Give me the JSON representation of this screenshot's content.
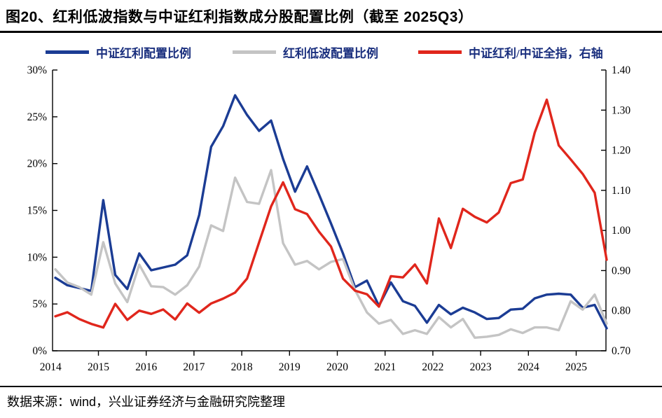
{
  "page": {
    "title": "图20、红利低波指数与中证红利指数成分股配置比例（截至 2025Q3）",
    "source": "数据来源：wind，兴业证券经济与金融研究院整理"
  },
  "colors": {
    "blue": "#1B3C94",
    "gray": "#C4C4C4",
    "red": "#E0261C",
    "axis": "#000000",
    "legend_text": "#1A2F7E"
  },
  "chart_data": {
    "type": "line",
    "title": "红利低波指数与中证红利指数成分股配置比例（截至 2025Q3）",
    "grid": false,
    "legend_position": "top",
    "x_axis": {
      "start": "2014Q1",
      "end": "2025Q3",
      "frequency": "quarterly",
      "tick_labels": [
        "2014",
        "2015",
        "2016",
        "2017",
        "2018",
        "2019",
        "2020",
        "2021",
        "2022",
        "2023",
        "2024",
        "2025"
      ]
    },
    "left_axis": {
      "min": 0,
      "max": 30,
      "step": 5,
      "tick_labels": [
        "0%",
        "5%",
        "10%",
        "15%",
        "20%",
        "25%",
        "30%"
      ]
    },
    "right_axis": {
      "min": 0.7,
      "max": 1.4,
      "step": 0.1,
      "tick_labels": [
        "0.70",
        "0.80",
        "0.90",
        "1.00",
        "1.10",
        "1.20",
        "1.30",
        "1.40"
      ]
    },
    "series": [
      {
        "name": "中证红利配置比例",
        "axis": "left",
        "unit": "%",
        "color": "#1B3C94",
        "values": [
          7.8,
          7.0,
          6.7,
          6.4,
          16.1,
          8.1,
          6.6,
          10.4,
          8.6,
          8.9,
          9.2,
          10.2,
          14.5,
          21.8,
          24.0,
          27.3,
          25.2,
          23.5,
          24.6,
          20.5,
          17.0,
          19.7,
          16.7,
          13.6,
          10.4,
          6.8,
          7.5,
          4.8,
          7.3,
          5.3,
          4.8,
          3.0,
          4.9,
          3.9,
          4.6,
          4.1,
          3.4,
          3.5,
          4.4,
          4.5,
          5.6,
          6.0,
          6.1,
          6.0,
          4.6,
          4.9,
          2.4
        ]
      },
      {
        "name": "红利低波配置比例",
        "axis": "left",
        "unit": "%",
        "color": "#C4C4C4",
        "values": [
          8.7,
          7.3,
          6.8,
          6.0,
          11.6,
          7.2,
          5.2,
          9.2,
          6.9,
          6.8,
          6.0,
          7.0,
          9.0,
          13.4,
          12.8,
          18.5,
          15.9,
          15.7,
          19.3,
          11.5,
          9.2,
          9.6,
          8.7,
          9.5,
          9.8,
          6.5,
          4.1,
          2.9,
          3.3,
          1.8,
          2.2,
          1.8,
          3.6,
          2.5,
          3.4,
          1.4,
          1.5,
          1.7,
          2.3,
          1.9,
          2.5,
          2.5,
          2.2,
          5.3,
          4.4,
          6.0,
          2.9
        ]
      },
      {
        "name": "中证红利/中证全指，右轴",
        "axis": "right",
        "unit": "ratio",
        "color": "#E0261C",
        "values": [
          0.786,
          0.796,
          0.779,
          0.767,
          0.758,
          0.817,
          0.777,
          0.8,
          0.792,
          0.803,
          0.778,
          0.818,
          0.795,
          0.818,
          0.83,
          0.845,
          0.88,
          0.97,
          1.06,
          1.12,
          1.053,
          1.041,
          0.997,
          0.96,
          0.88,
          0.85,
          0.841,
          0.81,
          0.886,
          0.883,
          0.915,
          0.868,
          1.03,
          0.956,
          1.054,
          1.034,
          1.02,
          1.045,
          1.118,
          1.127,
          1.244,
          1.326,
          1.212,
          1.177,
          1.141,
          1.094,
          0.927
        ]
      }
    ]
  }
}
